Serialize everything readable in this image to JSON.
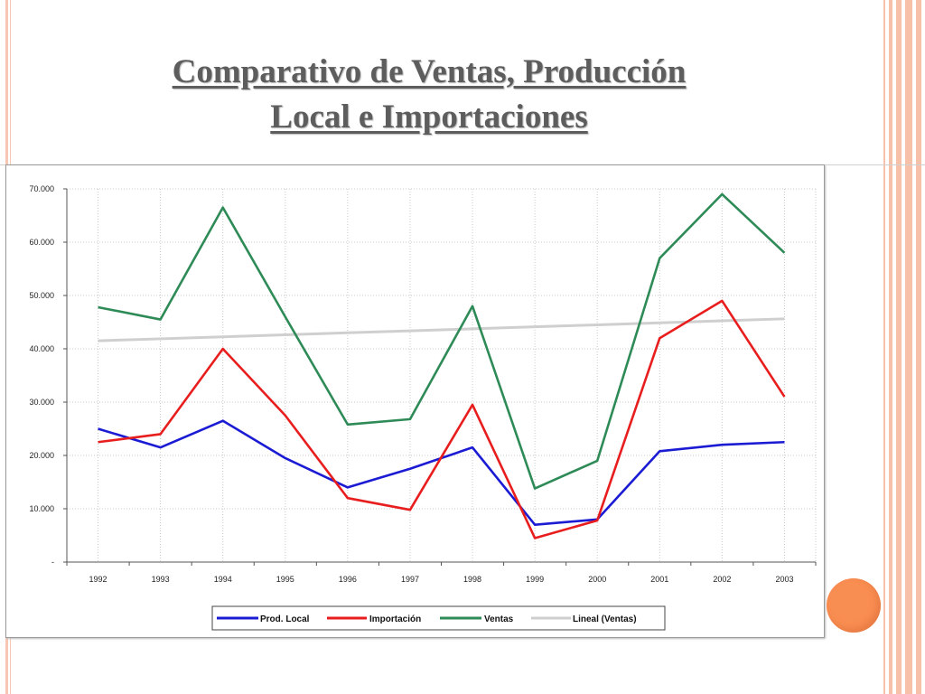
{
  "slide": {
    "title_line1": "Comparativo de Ventas, Producción",
    "title_line2": "Local e Importaciones"
  },
  "colors": {
    "prod_local": "#1b1bd4",
    "importacion": "#e81e1e",
    "ventas": "#2e8b57",
    "lineal": "#cfcfcf",
    "accent_circle": "#f98e52"
  },
  "chart_data": {
    "type": "line",
    "title": "",
    "xlabel": "",
    "ylabel": "",
    "categories": [
      "1992",
      "1993",
      "1994",
      "1995",
      "1996",
      "1997",
      "1998",
      "1999",
      "2000",
      "2001",
      "2002",
      "2003"
    ],
    "ylim": [
      0,
      70000
    ],
    "y_ticks": [
      "-",
      "10.000",
      "20.000",
      "30.000",
      "40.000",
      "50.000",
      "60.000",
      "70.000"
    ],
    "y_tick_values": [
      0,
      10000,
      20000,
      30000,
      40000,
      50000,
      60000,
      70000
    ],
    "grid": true,
    "legend_position": "bottom",
    "series": [
      {
        "name": "Prod. Local",
        "color": "#1b1bd4",
        "values": [
          25000,
          21500,
          26500,
          19500,
          14000,
          17500,
          21500,
          7000,
          8000,
          20800,
          22000,
          22500
        ]
      },
      {
        "name": "Importación",
        "color": "#e81e1e",
        "values": [
          22500,
          24000,
          40000,
          27500,
          12000,
          9800,
          29500,
          4500,
          7800,
          42000,
          49000,
          31000
        ]
      },
      {
        "name": "Ventas",
        "color": "#2e8b57",
        "values": [
          47800,
          45500,
          66500,
          46000,
          25800,
          26800,
          48000,
          13800,
          19000,
          57000,
          69000,
          58000
        ]
      },
      {
        "name": "Lineal (Ventas)",
        "color": "#cfcfcf",
        "values": [
          41500,
          41875,
          42250,
          42625,
          43000,
          43375,
          43750,
          44125,
          44500,
          44875,
          45250,
          45625
        ]
      }
    ]
  }
}
